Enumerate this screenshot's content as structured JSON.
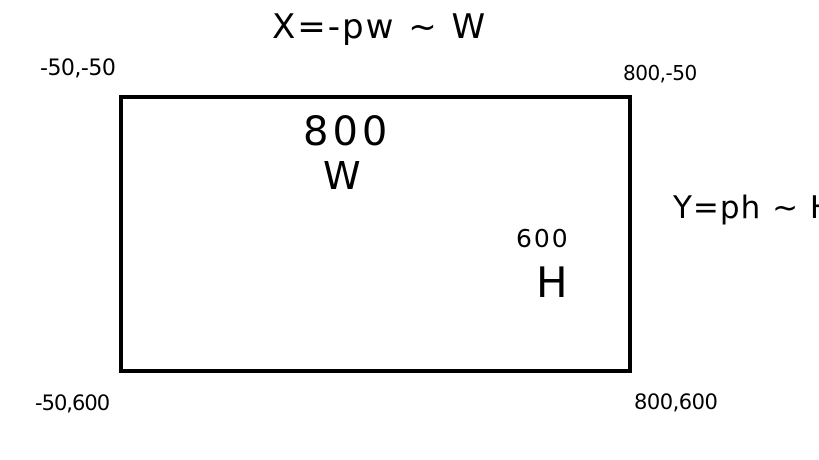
{
  "diagram": {
    "background_color": "#ffffff",
    "stroke_color": "#000000",
    "formulas": {
      "x_range": "X=-pw ~ W",
      "y_range": "Y=ph ~ H"
    },
    "corners": {
      "top_left": "-50,-50",
      "top_right": "800,-50",
      "bottom_left": "-50,600",
      "bottom_right": "800,600"
    },
    "dimensions": {
      "width_value": "800",
      "width_label": "W",
      "height_value": "600",
      "height_label": "H"
    }
  }
}
